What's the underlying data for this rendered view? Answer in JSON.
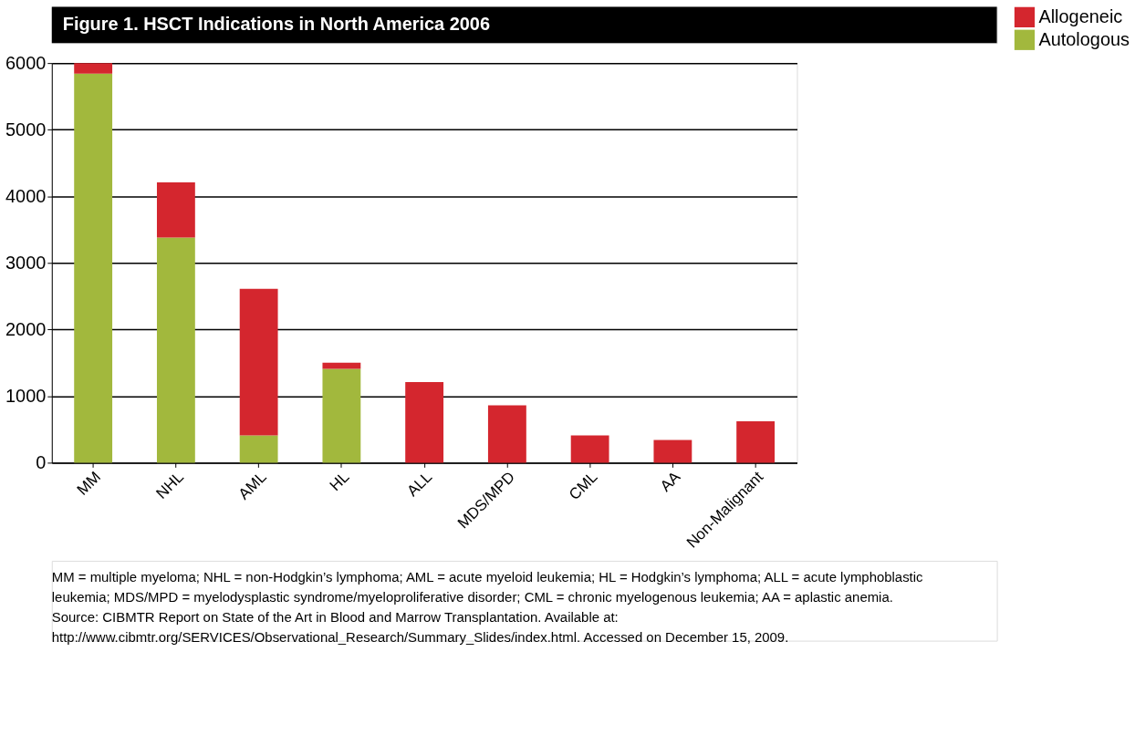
{
  "chart_data": {
    "type": "bar",
    "title": "Figure 1. HSCT Indications in North America 2006",
    "categories": [
      "MM",
      "NHL",
      "AML",
      "HL",
      "ALL",
      "MDS/MPD",
      "CML",
      "AA",
      "Non-Malignant"
    ],
    "series": [
      {
        "name": "Autologous",
        "color": "#a2b83d",
        "values": [
          5840,
          3380,
          410,
          1410,
          null,
          null,
          null,
          null,
          null
        ]
      },
      {
        "name": "Allogeneic",
        "color": "#d4262e",
        "values": [
          160,
          830,
          2200,
          90,
          1210,
          860,
          410,
          340,
          620
        ]
      }
    ],
    "stacked": true,
    "ylim": [
      0,
      6000
    ],
    "yticks": [
      0,
      1000,
      2000,
      3000,
      4000,
      5000,
      6000
    ],
    "grid": "y",
    "legend": "right",
    "annotations": [
      "MM = multiple myeloma; NHL = non-Hodgkin’s lymphoma; AML = acute myeloid leukemia; HL = Hodgkin’s lymphoma; ALL = acute lymphoblastic leukemia; MDS/MPD = myelodysplastic syndrome/myeloproliferative disorder; CML = chronic myelogenous leukemia; AA = aplastic anemia.",
      "Source: CIBMTR Report on State of the Art in Blood and Marrow Transplantation. Available at: http://www.cibmtr.org/SERVICES/Observational_Research/Summary_Slides/index.html. Accessed on December 15, 2009."
    ]
  }
}
